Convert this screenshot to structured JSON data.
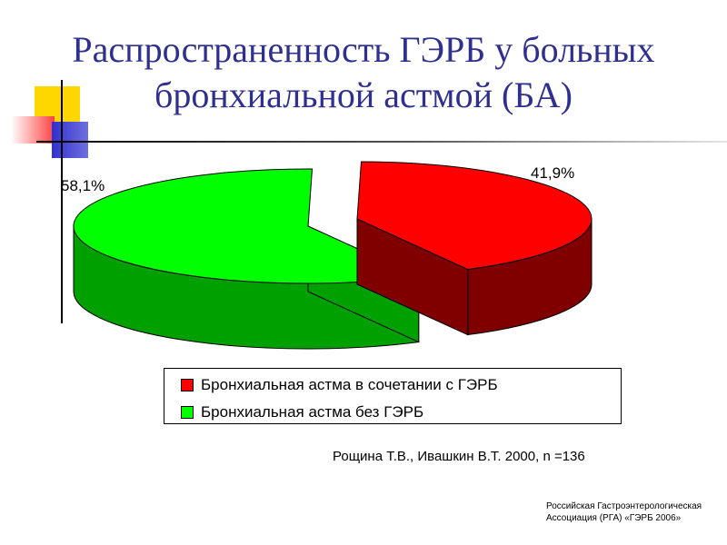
{
  "title": {
    "line1": "Распространенность ГЭРБ у больных",
    "line2": "бронхиальной астмой (БА)"
  },
  "chart_data": {
    "type": "pie",
    "style": "3d-exploded",
    "slices": [
      {
        "name": "Бронхиальная астма в сочетании с ГЭРБ",
        "value": 41.9,
        "label": "41,9%",
        "color": "#ff0000",
        "side_color": "#800000"
      },
      {
        "name": "Бронхиальная астма без ГЭРБ",
        "value": 58.1,
        "label": "58,1%",
        "color": "#00ff00",
        "side_color": "#00a000"
      }
    ],
    "legend_position": "bottom"
  },
  "legend": {
    "items": [
      {
        "label": "Бронхиальная астма в сочетании с ГЭРБ",
        "color": "#ff0000"
      },
      {
        "label": "Бронхиальная астма без ГЭРБ",
        "color": "#00ff00"
      }
    ]
  },
  "source": "Рощина Т.В., Ивашкин В.Т. 2000, n =136",
  "footer": {
    "line1": "Российская Гастроэнтерологическая",
    "line2": "Ассоциация (РГА) «ГЭРБ 2006»"
  }
}
